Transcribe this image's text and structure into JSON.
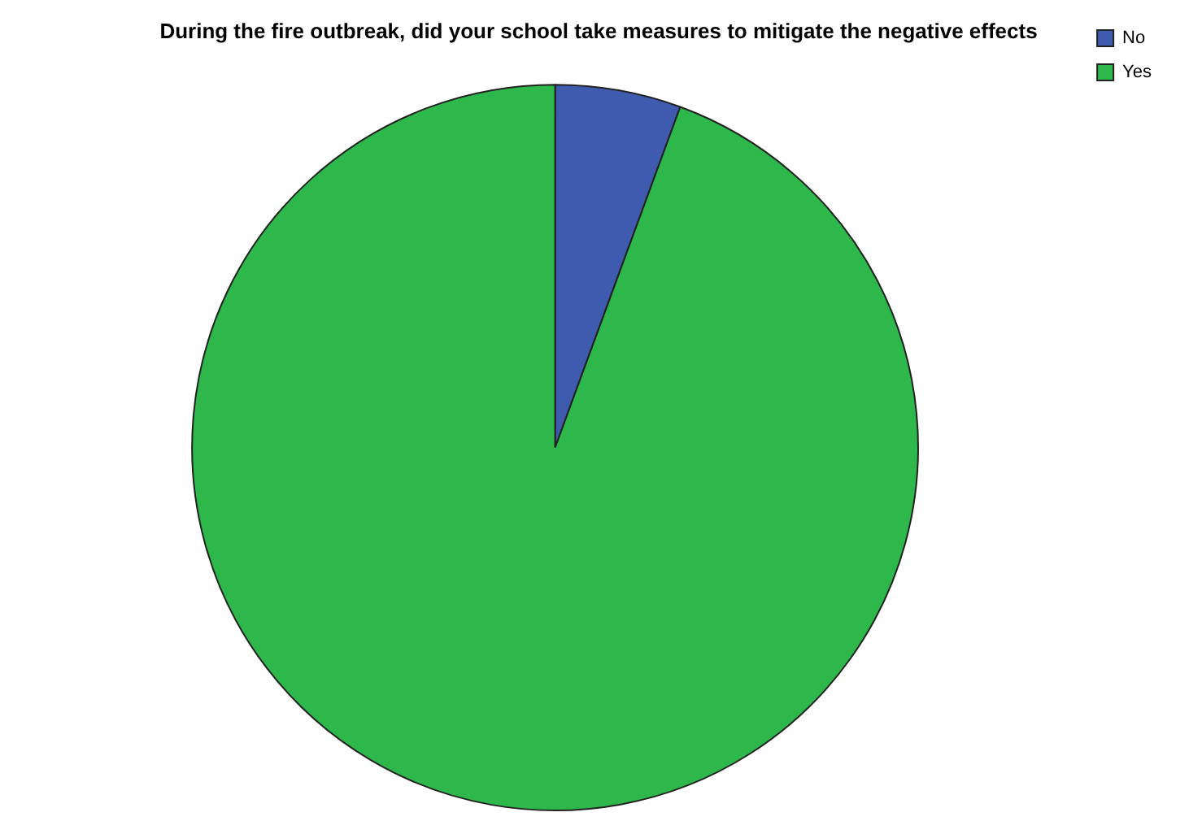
{
  "chart_data": {
    "type": "pie",
    "title": "During the fire outbreak, did your school take measures to mitigate the negative effects",
    "categories": [
      "No",
      "Yes"
    ],
    "values": [
      5.6,
      94.4
    ],
    "colors": [
      "#3f5bb0",
      "#2eb84b"
    ],
    "legend": "top right"
  }
}
